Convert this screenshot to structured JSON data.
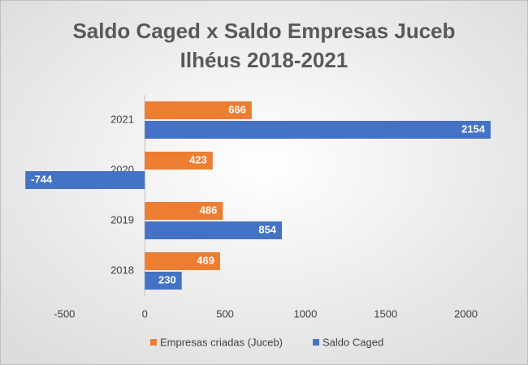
{
  "chart_data": {
    "type": "hbar",
    "title": [
      "Saldo Caged x Saldo Empresas Juceb",
      "Ilhéus 2018-2021"
    ],
    "categories": [
      "2018",
      "2019",
      "2020",
      "2021"
    ],
    "series": [
      {
        "name": "Empresas criadas (Juceb)",
        "color": "#ed7d31",
        "values": [
          469,
          486,
          423,
          666
        ]
      },
      {
        "name": "Saldo Caged",
        "color": "#4472c4",
        "values": [
          230,
          854,
          -744,
          2154
        ]
      }
    ],
    "xlim": [
      -750,
      2250
    ],
    "xticks": [
      -500,
      0,
      500,
      1000,
      1500,
      2000
    ],
    "legend": "bottom"
  }
}
